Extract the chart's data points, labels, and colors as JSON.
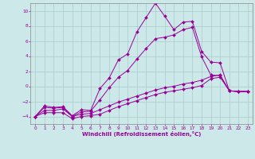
{
  "xlabel": "Windchill (Refroidissement éolien,°C)",
  "bg_color": "#cce8e8",
  "grid_color": "#aacccc",
  "line_color": "#990099",
  "xlim": [
    -0.5,
    23.5
  ],
  "ylim": [
    -5.0,
    11.0
  ],
  "xticks": [
    0,
    1,
    2,
    3,
    4,
    5,
    6,
    7,
    8,
    9,
    10,
    11,
    12,
    13,
    14,
    15,
    16,
    17,
    18,
    19,
    20,
    21,
    22,
    23
  ],
  "yticks": [
    -4,
    -2,
    0,
    2,
    4,
    6,
    8,
    10
  ],
  "curve1_x": [
    0,
    1,
    2,
    3,
    4,
    5,
    6,
    7,
    8,
    9,
    10,
    11,
    12,
    13,
    14,
    15,
    16,
    17,
    18,
    19,
    20,
    21,
    22,
    23
  ],
  "curve1_y": [
    -4.0,
    -2.6,
    -2.8,
    -2.7,
    -3.9,
    -3.1,
    -3.2,
    -0.3,
    1.1,
    3.5,
    4.3,
    7.2,
    9.1,
    11.0,
    9.3,
    7.5,
    8.5,
    8.6,
    4.6,
    3.2,
    3.1,
    -0.6,
    -0.7,
    -0.7
  ],
  "curve2_x": [
    0,
    1,
    2,
    3,
    4,
    5,
    6,
    7,
    8,
    9,
    10,
    11,
    12,
    13,
    14,
    15,
    16,
    17,
    18,
    19,
    20,
    21,
    22,
    23
  ],
  "curve2_y": [
    -4.0,
    -3.5,
    -3.5,
    -3.5,
    -4.3,
    -4.0,
    -3.9,
    -3.7,
    -3.2,
    -2.7,
    -2.3,
    -1.9,
    -1.5,
    -1.1,
    -0.8,
    -0.6,
    -0.4,
    -0.2,
    0.1,
    1.0,
    1.2,
    -0.6,
    -0.7,
    -0.7
  ],
  "curve3_x": [
    0,
    1,
    2,
    3,
    4,
    5,
    6,
    7,
    8,
    9,
    10,
    11,
    12,
    13,
    14,
    15,
    16,
    17,
    18,
    19,
    20,
    21,
    22,
    23
  ],
  "curve3_y": [
    -4.0,
    -3.2,
    -3.2,
    -3.0,
    -4.0,
    -3.7,
    -3.6,
    -3.1,
    -2.6,
    -2.1,
    -1.7,
    -1.3,
    -0.9,
    -0.5,
    -0.2,
    0.0,
    0.3,
    0.5,
    0.8,
    1.3,
    1.5,
    -0.6,
    -0.7,
    -0.7
  ],
  "curve4_x": [
    0,
    1,
    2,
    3,
    4,
    5,
    6,
    7,
    8,
    9,
    10,
    11,
    12,
    13,
    14,
    15,
    16,
    17,
    18,
    19,
    20,
    21,
    22,
    23
  ],
  "curve4_y": [
    -4.0,
    -2.8,
    -2.9,
    -2.8,
    -4.0,
    -3.4,
    -3.3,
    -1.8,
    -0.2,
    1.2,
    2.1,
    3.6,
    5.0,
    6.3,
    6.5,
    6.8,
    7.5,
    7.8,
    3.9,
    1.5,
    1.4,
    -0.6,
    -0.7,
    -0.7
  ]
}
